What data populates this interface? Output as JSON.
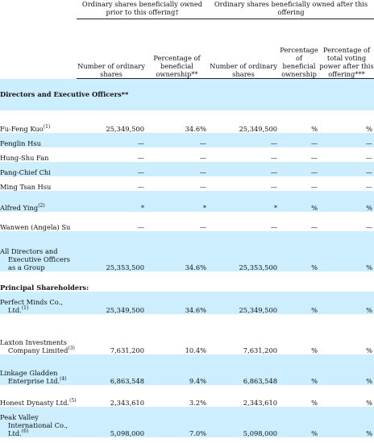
{
  "header": {
    "group_prior": "Ordinary shares beneficially owned prior to this offering†",
    "group_after": "Ordinary shares beneficially owned after this offering",
    "col_num_prior": "Number of ordinary shares",
    "col_pct_prior": "Percentage of beneficial ownership**",
    "col_num_after": "Number of ordinary shares",
    "col_pct_after": "Percentage of beneficial ownership",
    "col_voting": "Percentage of total voting power after this offering***"
  },
  "sections": [
    {
      "label": "Directors and Executive Officers**"
    },
    {
      "label": "Principal Shareholders:"
    }
  ],
  "rows": [
    {
      "name": "Fu-Feng Kuo",
      "note": "(1)",
      "n1": "25,349,500",
      "p1": "34.6%",
      "n2": "25,349,500",
      "p2": "%",
      "v": "%"
    },
    {
      "name": "Fenglin Hsu",
      "note": "",
      "n1": "—",
      "p1": "—",
      "n2": "—",
      "p2": "—",
      "v": "—"
    },
    {
      "name": "Hung-Shu Fan",
      "note": "",
      "n1": "—",
      "p1": "—",
      "n2": "—",
      "p2": "—",
      "v": "—"
    },
    {
      "name": "Pang-Chief Chi",
      "note": "",
      "n1": "—",
      "p1": "—",
      "n2": "—",
      "p2": "—",
      "v": "—"
    },
    {
      "name": "Ming Tsan Hsu",
      "note": "",
      "n1": "—",
      "p1": "—",
      "n2": "—",
      "p2": "—",
      "v": "—"
    },
    {
      "name": "Alfred Ying",
      "note": "(2)",
      "n1": "*",
      "p1": "*",
      "n2": "*",
      "p2": "%",
      "v": "%"
    },
    {
      "name": "Wanwen (Angela) Su",
      "note": "",
      "n1": "—",
      "p1": "—",
      "n2": "—",
      "p2": "—",
      "v": "—"
    },
    {
      "name": "All Directors and Executive Officers as a Group",
      "note": "",
      "n1": "25,353,500",
      "p1": "34.6%",
      "n2": "25,353,500",
      "p2": "%",
      "v": "%"
    },
    {
      "name": "Perfect Minds Co., Ltd.",
      "note": "(1)",
      "n1": "25,349,500",
      "p1": "34.6%",
      "n2": "25,349,500",
      "p2": "%",
      "v": "%"
    },
    {
      "name": "Laxton Investments Company Limited",
      "note": "(3)",
      "n1": "7,631,200",
      "p1": "10.4%",
      "n2": "7,631,200",
      "p2": "%",
      "v": "%"
    },
    {
      "name": "Linkage Gladden Enterprise Ltd.",
      "note": "(4)",
      "n1": "6,863,548",
      "p1": "9.4%",
      "n2": "6,863,548",
      "p2": "%",
      "v": "%"
    },
    {
      "name": "Honest Dynasty Ltd.",
      "note": "(5)",
      "n1": "2,343,610",
      "p1": "3.2%",
      "n2": "2,343,610",
      "p2": "%",
      "v": "%"
    },
    {
      "name": "Peak Valley International Co., Ltd.",
      "note": "(6)",
      "n1": "5,098,000",
      "p1": "7.0%",
      "n2": "5,098,000",
      "p2": "%",
      "v": "%"
    }
  ]
}
